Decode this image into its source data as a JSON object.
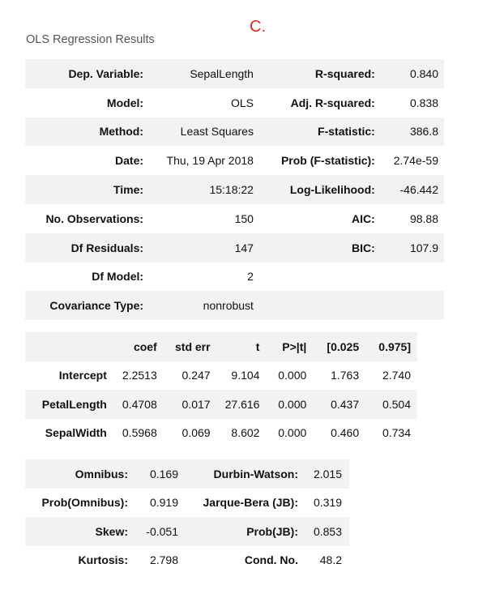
{
  "marker": "C.",
  "caption": "OLS Regression Results",
  "summary_rows": [
    {
      "label1": "Dep. Variable:",
      "value1": "SepalLength",
      "label2": "R-squared:",
      "value2": "0.840"
    },
    {
      "label1": "Model:",
      "value1": "OLS",
      "label2": "Adj. R-squared:",
      "value2": "0.838"
    },
    {
      "label1": "Method:",
      "value1": "Least Squares",
      "label2": "F-statistic:",
      "value2": "386.8"
    },
    {
      "label1": "Date:",
      "value1": "Thu, 19 Apr 2018",
      "label2": "Prob (F-statistic):",
      "value2": "2.74e-59"
    },
    {
      "label1": "Time:",
      "value1": "15:18:22",
      "label2": "Log-Likelihood:",
      "value2": "-46.442"
    },
    {
      "label1": "No. Observations:",
      "value1": "150",
      "label2": "AIC:",
      "value2": "98.88"
    },
    {
      "label1": "Df Residuals:",
      "value1": "147",
      "label2": "BIC:",
      "value2": "107.9"
    },
    {
      "label1": "Df Model:",
      "value1": "2",
      "label2": "",
      "value2": ""
    },
    {
      "label1": "Covariance Type:",
      "value1": "nonrobust",
      "label2": "",
      "value2": ""
    }
  ],
  "coef_table": {
    "headers": [
      "",
      "coef",
      "std err",
      "t",
      "P>|t|",
      "[0.025",
      "0.975]"
    ],
    "rows": [
      {
        "name": "Intercept",
        "cells": [
          "2.2513",
          "0.247",
          "9.104",
          "0.000",
          "1.763",
          "2.740"
        ]
      },
      {
        "name": "PetalLength",
        "cells": [
          "0.4708",
          "0.017",
          "27.616",
          "0.000",
          "0.437",
          "0.504"
        ]
      },
      {
        "name": "SepalWidth",
        "cells": [
          "0.5968",
          "0.069",
          "8.602",
          "0.000",
          "0.460",
          "0.734"
        ]
      }
    ]
  },
  "diagnostics": [
    {
      "label1": "Omnibus:",
      "value1": "0.169",
      "label2": "Durbin-Watson:",
      "value2": "2.015"
    },
    {
      "label1": "Prob(Omnibus):",
      "value1": "0.919",
      "label2": "Jarque-Bera (JB):",
      "value2": "0.319"
    },
    {
      "label1": "Skew:",
      "value1": "-0.051",
      "label2": "Prob(JB):",
      "value2": "0.853"
    },
    {
      "label1": "Kurtosis:",
      "value1": "2.798",
      "label2": "Cond. No.",
      "value2": "48.2"
    }
  ],
  "colors": {
    "marker": "#e8271d",
    "shade": "#f2f2f2",
    "caption": "#555555"
  }
}
